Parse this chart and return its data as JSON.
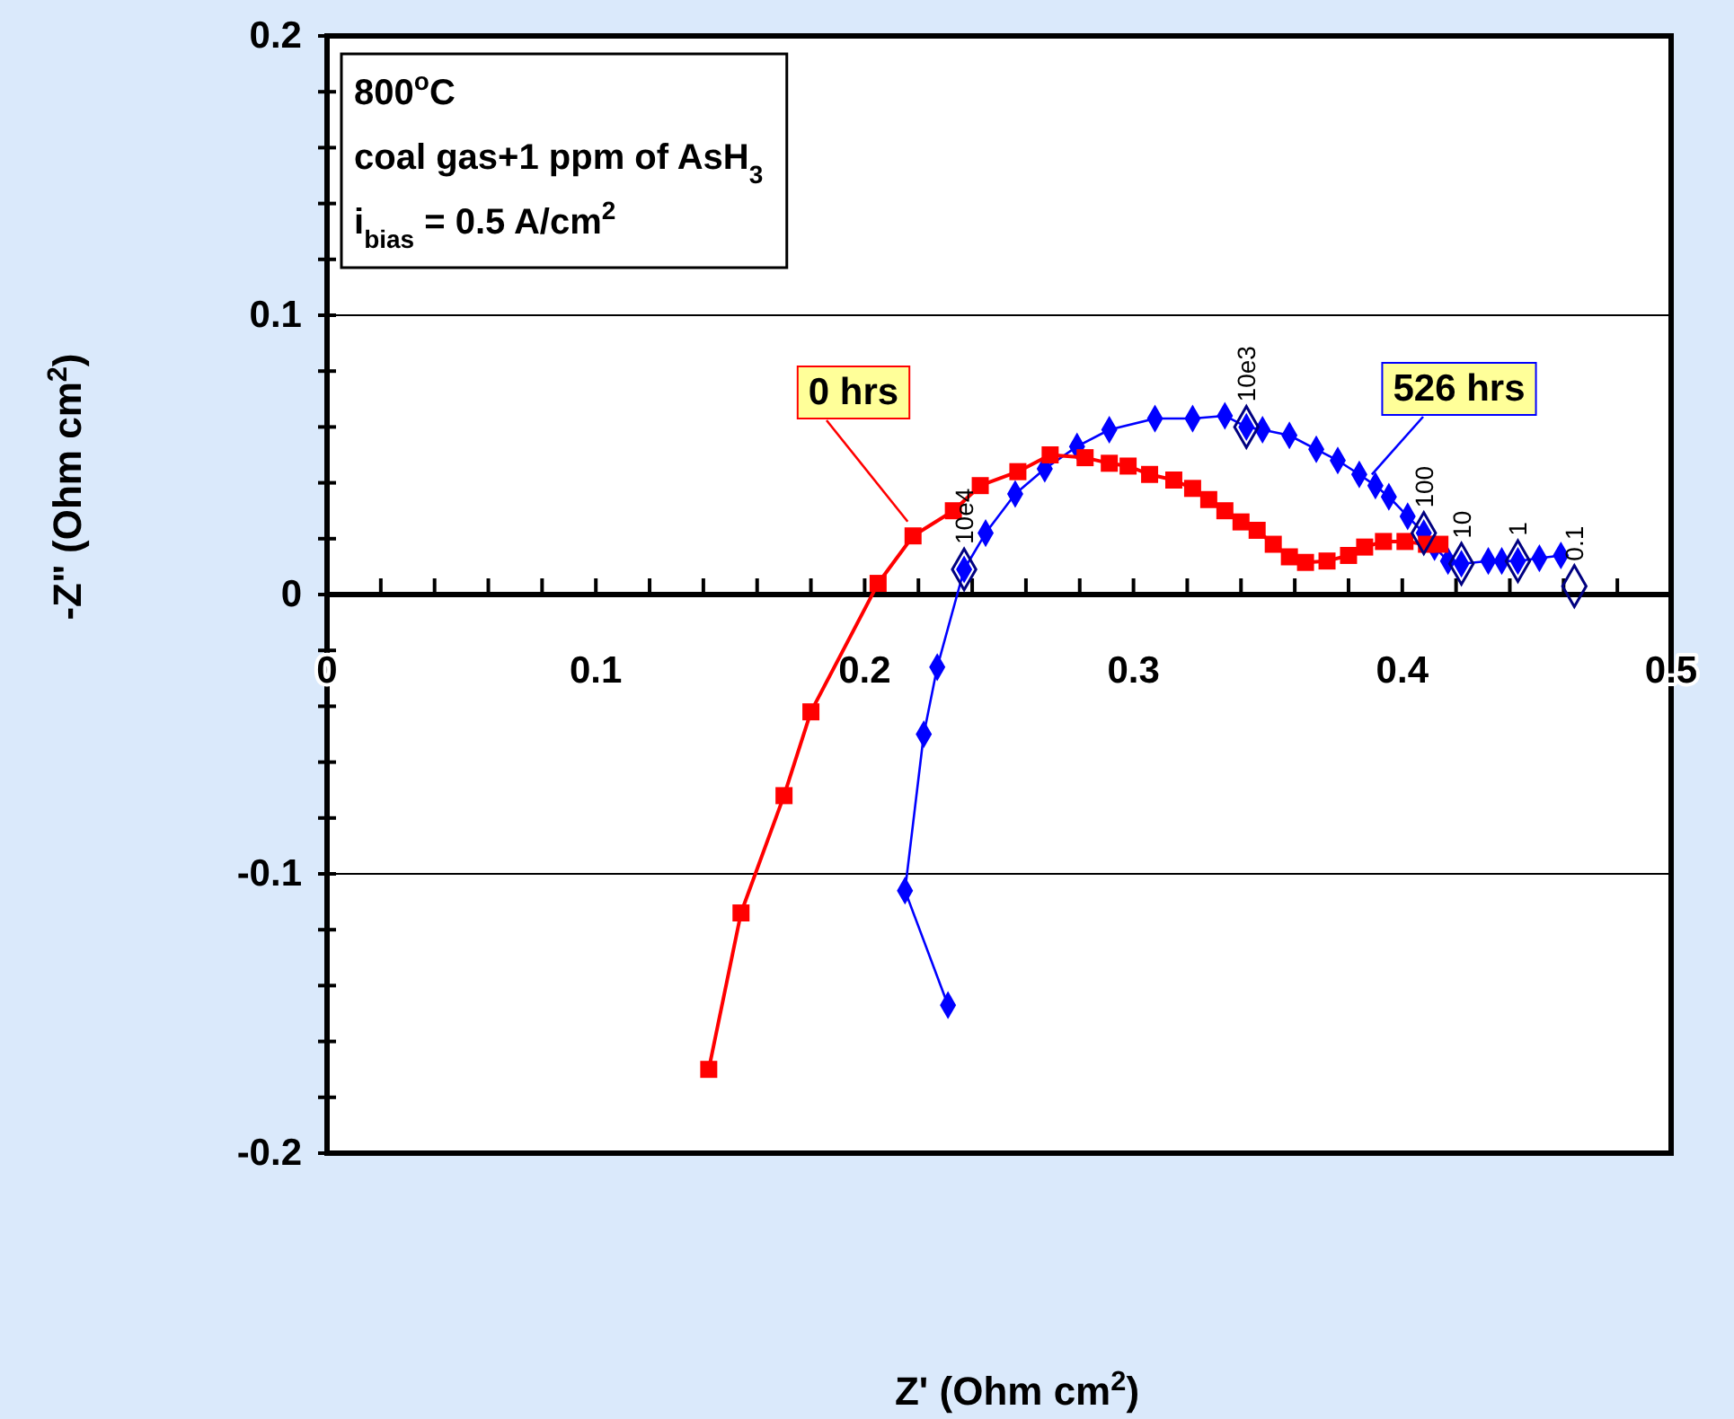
{
  "chart_data": {
    "type": "line",
    "xlabel": "Z' (Ohm cm$^{2}$)",
    "ylabel": "-Z\" (Ohm cm$^{2}$)",
    "xlim": [
      0,
      0.5
    ],
    "ylim": [
      -0.2,
      0.2
    ],
    "xticks": [
      0,
      {
        "value": 0.02,
        "label": null
      },
      {
        "value": 0.04,
        "label": null
      },
      {
        "value": 0.06,
        "label": null
      },
      {
        "value": 0.08,
        "label": null
      },
      0.1,
      {
        "value": 0.12,
        "label": null
      },
      {
        "value": 0.14,
        "label": null
      },
      {
        "value": 0.16,
        "label": null
      },
      {
        "value": 0.18,
        "label": null
      },
      0.2,
      {
        "value": 0.22,
        "label": null
      },
      {
        "value": 0.24,
        "label": null
      },
      {
        "value": 0.26,
        "label": null
      },
      {
        "value": 0.28,
        "label": null
      },
      0.3,
      {
        "value": 0.32,
        "label": null
      },
      {
        "value": 0.34,
        "label": null
      },
      {
        "value": 0.36,
        "label": null
      },
      {
        "value": 0.38,
        "label": null
      },
      0.4,
      {
        "value": 0.42,
        "label": null
      },
      {
        "value": 0.44,
        "label": null
      },
      {
        "value": 0.46,
        "label": null
      },
      {
        "value": 0.48,
        "label": null
      },
      0.5
    ],
    "yticks": [
      -0.2,
      {
        "value": -0.18,
        "label": null
      },
      {
        "value": -0.16,
        "label": null
      },
      {
        "value": -0.14,
        "label": null
      },
      {
        "value": -0.12,
        "label": null
      },
      -0.1,
      {
        "value": -0.08,
        "label": null
      },
      {
        "value": -0.06,
        "label": null
      },
      {
        "value": -0.04,
        "label": null
      },
      {
        "value": -0.02,
        "label": null
      },
      0,
      {
        "value": 0.02,
        "label": null
      },
      {
        "value": 0.04,
        "label": null
      },
      {
        "value": 0.06,
        "label": null
      },
      {
        "value": 0.08,
        "label": null
      },
      0.1,
      {
        "value": 0.12,
        "label": null
      },
      {
        "value": 0.14,
        "label": null
      },
      {
        "value": 0.16,
        "label": null
      },
      {
        "value": 0.18,
        "label": null
      },
      0.2
    ],
    "grid": "y",
    "series": [
      {
        "name": "0 hrs",
        "color": "#ff0000",
        "marker": "square",
        "x": [
          0.142,
          0.154,
          0.17,
          0.18,
          0.205,
          0.218,
          0.233,
          0.243,
          0.257,
          0.269,
          0.282,
          0.291,
          0.298,
          0.306,
          0.315,
          0.322,
          0.328,
          0.334,
          0.34,
          0.346,
          0.352,
          0.358,
          0.364,
          0.372,
          0.38,
          0.386,
          0.393,
          0.401,
          0.409,
          0.414
        ],
        "values": [
          -0.17,
          -0.114,
          -0.072,
          -0.042,
          0.004,
          0.021,
          0.03,
          0.039,
          0.044,
          0.05,
          0.049,
          0.047,
          0.046,
          0.043,
          0.041,
          0.038,
          0.034,
          0.03,
          0.026,
          0.023,
          0.018,
          0.0135,
          0.0115,
          0.012,
          0.014,
          0.017,
          0.019,
          0.019,
          0.018,
          0.018
        ]
      },
      {
        "name": "526 hrs",
        "color": "#0000ff",
        "marker": "diamond",
        "x": [
          0.231,
          0.215,
          0.222,
          0.227,
          0.237,
          0.245,
          0.256,
          0.267,
          0.279,
          0.291,
          0.308,
          0.322,
          0.334,
          0.342,
          0.348,
          0.358,
          0.368,
          0.376,
          0.384,
          0.39,
          0.395,
          0.402,
          0.408,
          0.412,
          0.417,
          0.422,
          0.432,
          0.437,
          0.443,
          0.451,
          0.459
        ],
        "values": [
          -0.147,
          -0.106,
          -0.05,
          -0.026,
          0.009,
          0.022,
          0.036,
          0.045,
          0.053,
          0.059,
          0.063,
          0.063,
          0.064,
          0.06,
          0.059,
          0.057,
          0.052,
          0.048,
          0.043,
          0.039,
          0.035,
          0.028,
          0.022,
          0.017,
          0.012,
          0.011,
          0.012,
          0.012,
          0.012,
          0.013,
          0.014
        ]
      },
      {
        "type": "scatter",
        "color": "#000080",
        "marker": "diamond",
        "x": [
          0.237,
          0.342,
          0.408,
          0.422,
          0.443,
          0.464
        ],
        "values": [
          0.009,
          0.06,
          0.022,
          0.011,
          0.012,
          0.003
        ]
      }
    ],
    "annotations": [
      "800$^{o}$C",
      "coal gas+1 ppm of AsH$_{3}$",
      "i$_{bias}$ = 0.5 A/cm$^{2}$",
      {
        "text": "10e4",
        "x": 0.237,
        "y": 0.009
      },
      {
        "text": "10e3",
        "x": 0.342,
        "y": 0.06
      },
      {
        "text": "100",
        "x": 0.408,
        "y": 0.022
      },
      {
        "text": "10",
        "x": 0.422,
        "y": 0.011
      },
      {
        "text": "1",
        "x": 0.443,
        "y": 0.012
      },
      {
        "text": "0.1",
        "x": 0.464,
        "y": 0.003
      }
    ]
  }
}
